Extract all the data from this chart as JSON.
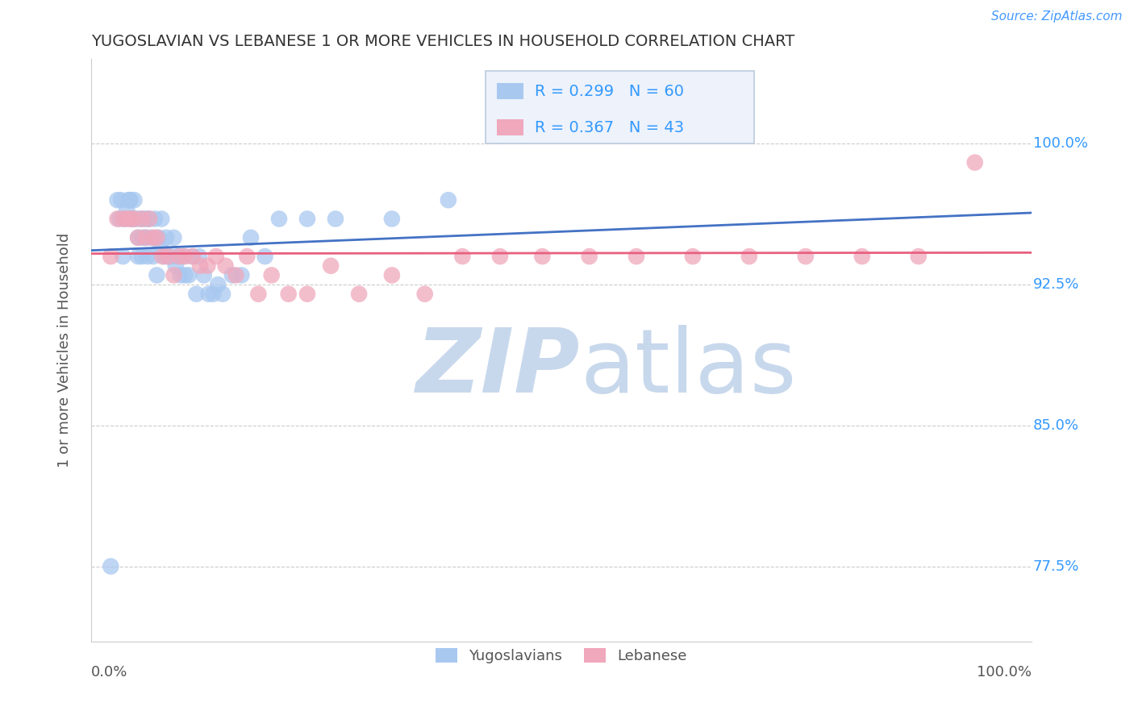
{
  "title": "YUGOSLAVIAN VS LEBANESE 1 OR MORE VEHICLES IN HOUSEHOLD CORRELATION CHART",
  "source": "Source: ZipAtlas.com",
  "ylabel": "1 or more Vehicles in Household",
  "ytick_labels": [
    "77.5%",
    "85.0%",
    "92.5%",
    "100.0%"
  ],
  "ytick_values": [
    0.775,
    0.85,
    0.925,
    1.0
  ],
  "xlim": [
    0.0,
    1.0
  ],
  "ylim": [
    0.735,
    1.045
  ],
  "legend_yugoslavians": "Yugoslavians",
  "legend_lebanese": "Lebanese",
  "R_yugoslavian": 0.299,
  "N_yugoslavian": 60,
  "R_lebanese": 0.367,
  "N_lebanese": 43,
  "color_yugoslav": "#a8c8f0",
  "color_lebanese": "#f0a8bc",
  "color_yugoslav_line": "#4472c4",
  "color_lebanese_line": "#e86080",
  "background_color": "#ffffff",
  "watermark_zip_color": "#c8d8ec",
  "watermark_atlas_color": "#c8d8ec",
  "yugoslav_x": [
    0.021,
    0.028,
    0.03,
    0.032,
    0.034,
    0.036,
    0.038,
    0.04,
    0.041,
    0.042,
    0.043,
    0.044,
    0.045,
    0.046,
    0.048,
    0.05,
    0.05,
    0.052,
    0.054,
    0.055,
    0.056,
    0.058,
    0.059,
    0.06,
    0.062,
    0.064,
    0.066,
    0.068,
    0.07,
    0.072,
    0.074,
    0.075,
    0.078,
    0.08,
    0.082,
    0.085,
    0.088,
    0.09,
    0.092,
    0.095,
    0.098,
    0.1,
    0.104,
    0.108,
    0.112,
    0.115,
    0.12,
    0.125,
    0.13,
    0.135,
    0.14,
    0.15,
    0.16,
    0.17,
    0.185,
    0.2,
    0.23,
    0.26,
    0.32,
    0.38
  ],
  "yugoslav_y": [
    0.775,
    0.97,
    0.96,
    0.97,
    0.94,
    0.96,
    0.965,
    0.97,
    0.97,
    0.97,
    0.96,
    0.96,
    0.96,
    0.97,
    0.96,
    0.95,
    0.94,
    0.96,
    0.94,
    0.95,
    0.96,
    0.95,
    0.96,
    0.94,
    0.96,
    0.95,
    0.94,
    0.96,
    0.93,
    0.95,
    0.945,
    0.96,
    0.94,
    0.95,
    0.94,
    0.94,
    0.95,
    0.935,
    0.94,
    0.93,
    0.94,
    0.93,
    0.93,
    0.94,
    0.92,
    0.94,
    0.93,
    0.92,
    0.92,
    0.925,
    0.92,
    0.93,
    0.93,
    0.95,
    0.94,
    0.96,
    0.96,
    0.96,
    0.96,
    0.97
  ],
  "lebanese_x": [
    0.021,
    0.028,
    0.034,
    0.038,
    0.042,
    0.046,
    0.05,
    0.054,
    0.058,
    0.062,
    0.066,
    0.07,
    0.076,
    0.082,
    0.088,
    0.094,
    0.1,
    0.108,
    0.116,
    0.124,
    0.133,
    0.143,
    0.154,
    0.166,
    0.178,
    0.192,
    0.21,
    0.23,
    0.255,
    0.285,
    0.32,
    0.355,
    0.395,
    0.435,
    0.48,
    0.53,
    0.58,
    0.64,
    0.7,
    0.76,
    0.82,
    0.88,
    0.94
  ],
  "lebanese_y": [
    0.94,
    0.96,
    0.96,
    0.96,
    0.96,
    0.96,
    0.95,
    0.96,
    0.95,
    0.96,
    0.95,
    0.95,
    0.94,
    0.94,
    0.93,
    0.94,
    0.94,
    0.94,
    0.935,
    0.935,
    0.94,
    0.935,
    0.93,
    0.94,
    0.92,
    0.93,
    0.92,
    0.92,
    0.935,
    0.92,
    0.93,
    0.92,
    0.94,
    0.94,
    0.94,
    0.94,
    0.94,
    0.94,
    0.94,
    0.94,
    0.94,
    0.94,
    0.99
  ]
}
